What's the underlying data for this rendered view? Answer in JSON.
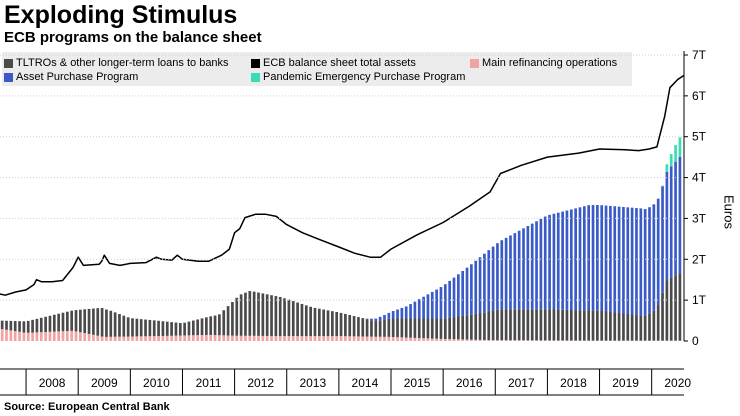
{
  "title": "Exploding Stimulus",
  "subtitle": "ECB programs on the balance sheet",
  "source": "Source: European Central Bank",
  "chart_data": {
    "type": "bar+line",
    "title": "Exploding Stimulus",
    "subtitle": "ECB programs on the balance sheet",
    "ylabel": "Euros",
    "ylim": [
      0,
      7
    ],
    "yticks": [
      "0",
      "1T",
      "2T",
      "3T",
      "4T",
      "5T",
      "6T",
      "7T"
    ],
    "xlim": [
      2007.5,
      2020.62
    ],
    "xticks": [
      "2008",
      "2009",
      "2010",
      "2011",
      "2012",
      "2013",
      "2014",
      "2015",
      "2016",
      "2017",
      "2018",
      "2019",
      "2020"
    ],
    "legend": [
      {
        "name": "TLTROs & other longer-term loans to banks",
        "color": "#4a4a4a",
        "type": "bar"
      },
      {
        "name": "ECB balance sheet total assets",
        "color": "#000000",
        "type": "line"
      },
      {
        "name": "Main refinancing operations",
        "color": "#f0a3a3",
        "type": "bar"
      },
      {
        "name": "Asset Purchase Program",
        "color": "#3a5bc7",
        "type": "bar"
      },
      {
        "name": "Pandemic Emergency Purchase Program",
        "color": "#3ddbb5",
        "type": "bar"
      }
    ],
    "series_points": {
      "Main refinancing operations": [
        [
          2007.5,
          0.3
        ],
        [
          2008.0,
          0.2
        ],
        [
          2008.9,
          0.25
        ],
        [
          2009.5,
          0.1
        ],
        [
          2010.5,
          0.12
        ],
        [
          2011.5,
          0.15
        ],
        [
          2012.0,
          0.13
        ],
        [
          2013.0,
          0.12
        ],
        [
          2014.0,
          0.12
        ],
        [
          2015.0,
          0.1
        ],
        [
          2016.0,
          0.05
        ],
        [
          2017.0,
          0.02
        ],
        [
          2019.0,
          0.01
        ],
        [
          2020.62,
          0.01
        ]
      ],
      "TLTROs & other longer-term loans to banks": [
        [
          2007.5,
          0.2
        ],
        [
          2008.0,
          0.28
        ],
        [
          2008.9,
          0.5
        ],
        [
          2009.45,
          0.7
        ],
        [
          2009.6,
          0.65
        ],
        [
          2010.0,
          0.45
        ],
        [
          2010.5,
          0.38
        ],
        [
          2011.0,
          0.3
        ],
        [
          2011.7,
          0.5
        ],
        [
          2012.1,
          1.0
        ],
        [
          2012.3,
          1.1
        ],
        [
          2012.9,
          0.95
        ],
        [
          2013.5,
          0.7
        ],
        [
          2014.0,
          0.58
        ],
        [
          2014.7,
          0.38
        ],
        [
          2015.0,
          0.45
        ],
        [
          2016.0,
          0.5
        ],
        [
          2016.5,
          0.6
        ],
        [
          2017.1,
          0.76
        ],
        [
          2018.0,
          0.76
        ],
        [
          2019.0,
          0.73
        ],
        [
          2019.9,
          0.6
        ],
        [
          2020.1,
          0.78
        ],
        [
          2020.3,
          1.5
        ],
        [
          2020.62,
          1.7
        ]
      ],
      "Asset Purchase Program": [
        [
          2007.5,
          0.0
        ],
        [
          2014.5,
          0.0
        ],
        [
          2014.9,
          0.12
        ],
        [
          2015.3,
          0.3
        ],
        [
          2016.0,
          0.8
        ],
        [
          2017.0,
          1.6
        ],
        [
          2018.0,
          2.3
        ],
        [
          2018.8,
          2.58
        ],
        [
          2019.8,
          2.62
        ],
        [
          2020.2,
          2.6
        ],
        [
          2020.35,
          2.7
        ],
        [
          2020.62,
          2.9
        ]
      ],
      "Pandemic Emergency Purchase Program": [
        [
          2007.5,
          0.0
        ],
        [
          2020.2,
          0.0
        ],
        [
          2020.3,
          0.2
        ],
        [
          2020.45,
          0.4
        ],
        [
          2020.62,
          0.55
        ]
      ],
      "ECB balance sheet total assets": [
        [
          2007.5,
          1.15
        ],
        [
          2007.6,
          1.12
        ],
        [
          2007.8,
          1.2
        ],
        [
          2008.0,
          1.25
        ],
        [
          2008.15,
          1.38
        ],
        [
          2008.2,
          1.5
        ],
        [
          2008.3,
          1.45
        ],
        [
          2008.5,
          1.45
        ],
        [
          2008.7,
          1.48
        ],
        [
          2008.9,
          1.8
        ],
        [
          2009.0,
          2.05
        ],
        [
          2009.1,
          1.85
        ],
        [
          2009.4,
          1.88
        ],
        [
          2009.45,
          1.95
        ],
        [
          2009.5,
          2.1
        ],
        [
          2009.6,
          1.9
        ],
        [
          2009.8,
          1.85
        ],
        [
          2010.0,
          1.9
        ],
        [
          2010.3,
          1.92
        ],
        [
          2010.5,
          2.05
        ],
        [
          2010.6,
          2.0
        ],
        [
          2010.8,
          1.98
        ],
        [
          2010.9,
          2.1
        ],
        [
          2011.0,
          2.0
        ],
        [
          2011.3,
          1.95
        ],
        [
          2011.5,
          1.95
        ],
        [
          2011.75,
          2.1
        ],
        [
          2011.9,
          2.25
        ],
        [
          2012.0,
          2.65
        ],
        [
          2012.1,
          2.75
        ],
        [
          2012.2,
          3.02
        ],
        [
          2012.4,
          3.1
        ],
        [
          2012.6,
          3.1
        ],
        [
          2012.8,
          3.05
        ],
        [
          2013.0,
          2.85
        ],
        [
          2013.3,
          2.65
        ],
        [
          2013.6,
          2.5
        ],
        [
          2014.0,
          2.3
        ],
        [
          2014.3,
          2.15
        ],
        [
          2014.6,
          2.05
        ],
        [
          2014.8,
          2.05
        ],
        [
          2015.0,
          2.25
        ],
        [
          2015.5,
          2.6
        ],
        [
          2016.0,
          2.9
        ],
        [
          2016.5,
          3.3
        ],
        [
          2016.9,
          3.65
        ],
        [
          2017.1,
          4.1
        ],
        [
          2017.5,
          4.3
        ],
        [
          2018.0,
          4.5
        ],
        [
          2018.6,
          4.6
        ],
        [
          2019.0,
          4.7
        ],
        [
          2019.5,
          4.68
        ],
        [
          2019.75,
          4.66
        ],
        [
          2019.95,
          4.7
        ],
        [
          2020.1,
          4.75
        ],
        [
          2020.15,
          5.0
        ],
        [
          2020.25,
          5.5
        ],
        [
          2020.35,
          6.2
        ],
        [
          2020.5,
          6.4
        ],
        [
          2020.62,
          6.5
        ]
      ]
    }
  }
}
